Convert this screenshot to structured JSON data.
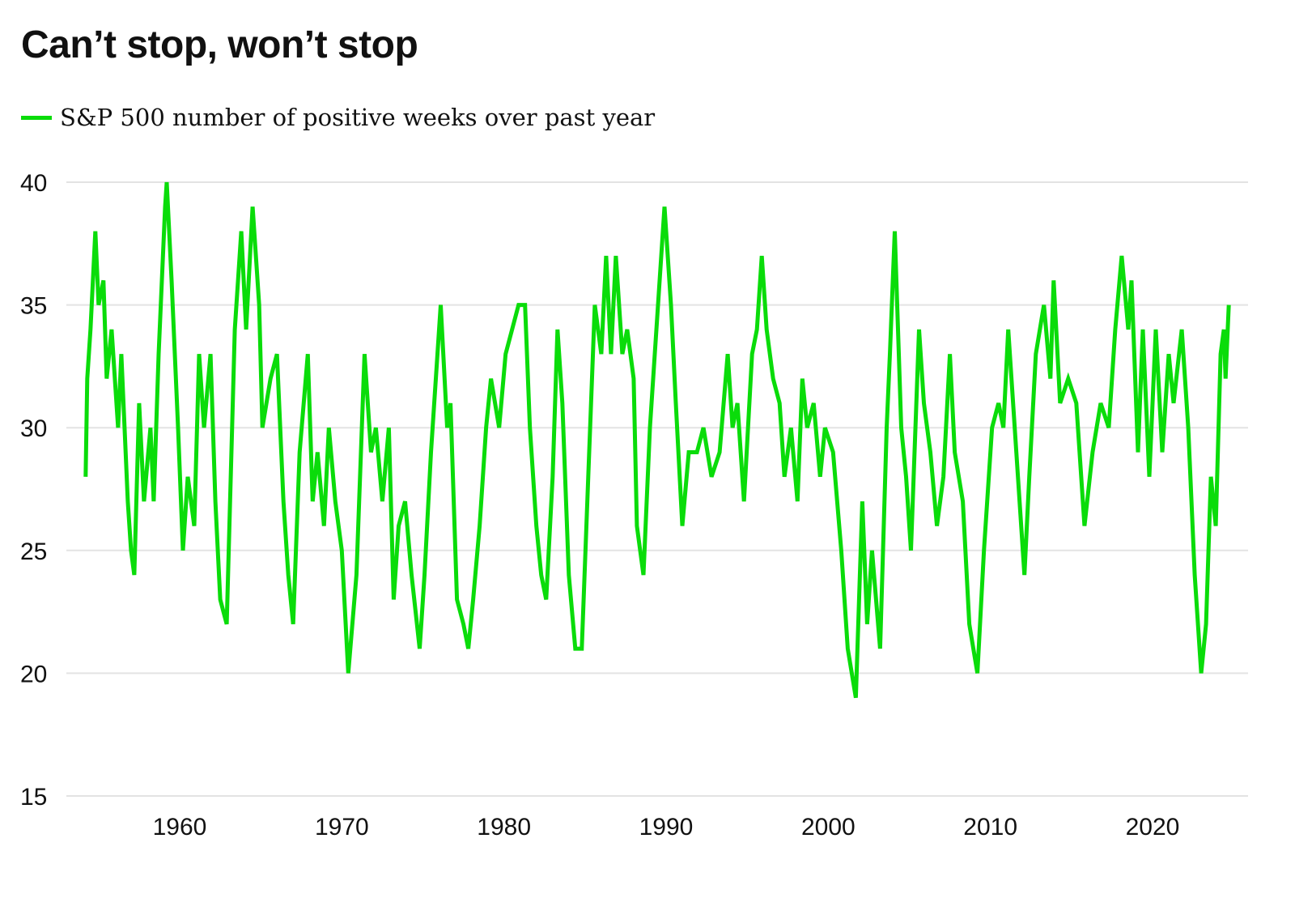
{
  "chart_data": {
    "type": "line",
    "title": "Can’t stop, won’t stop",
    "xlabel": "",
    "ylabel": "",
    "ylim": [
      15,
      40
    ],
    "xlim": [
      1953,
      2026
    ],
    "yticks": [
      15,
      20,
      25,
      30,
      35,
      40
    ],
    "xticks": [
      1960,
      1970,
      1980,
      1990,
      2000,
      2010,
      2020
    ],
    "grid": "horizontal",
    "legend_position": "top-left",
    "series": [
      {
        "name": "S&P 500 number of positive weeks over past year",
        "color": "#0adc0a",
        "points": [
          [
            1954.2,
            28
          ],
          [
            1954.3,
            32
          ],
          [
            1954.5,
            34
          ],
          [
            1954.8,
            38
          ],
          [
            1955.0,
            35
          ],
          [
            1955.3,
            36
          ],
          [
            1955.5,
            32
          ],
          [
            1955.8,
            34
          ],
          [
            1956.2,
            30
          ],
          [
            1956.4,
            33
          ],
          [
            1956.8,
            27
          ],
          [
            1957.0,
            25
          ],
          [
            1957.2,
            24
          ],
          [
            1957.5,
            31
          ],
          [
            1957.8,
            27
          ],
          [
            1958.2,
            30
          ],
          [
            1958.4,
            27
          ],
          [
            1958.7,
            33
          ],
          [
            1959.1,
            39
          ],
          [
            1959.2,
            40
          ],
          [
            1959.5,
            36
          ],
          [
            1959.9,
            30
          ],
          [
            1960.2,
            25
          ],
          [
            1960.5,
            28
          ],
          [
            1960.9,
            26
          ],
          [
            1961.2,
            33
          ],
          [
            1961.5,
            30
          ],
          [
            1961.9,
            33
          ],
          [
            1962.2,
            27
          ],
          [
            1962.5,
            23
          ],
          [
            1962.9,
            22
          ],
          [
            1963.4,
            34
          ],
          [
            1963.8,
            38
          ],
          [
            1964.1,
            34
          ],
          [
            1964.5,
            39
          ],
          [
            1964.9,
            35
          ],
          [
            1965.1,
            30
          ],
          [
            1965.6,
            32
          ],
          [
            1966.0,
            33
          ],
          [
            1966.4,
            27
          ],
          [
            1966.7,
            24
          ],
          [
            1967.0,
            22
          ],
          [
            1967.4,
            29
          ],
          [
            1967.9,
            33
          ],
          [
            1968.2,
            27
          ],
          [
            1968.5,
            29
          ],
          [
            1968.9,
            26
          ],
          [
            1969.2,
            30
          ],
          [
            1969.6,
            27
          ],
          [
            1970.0,
            25
          ],
          [
            1970.4,
            20
          ],
          [
            1970.9,
            24
          ],
          [
            1971.4,
            33
          ],
          [
            1971.8,
            29
          ],
          [
            1972.1,
            30
          ],
          [
            1972.5,
            27
          ],
          [
            1972.9,
            30
          ],
          [
            1973.2,
            23
          ],
          [
            1973.5,
            26
          ],
          [
            1973.9,
            27
          ],
          [
            1974.3,
            24
          ],
          [
            1974.8,
            21
          ],
          [
            1975.1,
            24
          ],
          [
            1975.5,
            29
          ],
          [
            1975.9,
            33
          ],
          [
            1976.1,
            35
          ],
          [
            1976.5,
            30
          ],
          [
            1976.7,
            31
          ],
          [
            1977.1,
            23
          ],
          [
            1977.5,
            22
          ],
          [
            1977.8,
            21
          ],
          [
            1978.1,
            23
          ],
          [
            1978.5,
            26
          ],
          [
            1978.9,
            30
          ],
          [
            1979.2,
            32
          ],
          [
            1979.7,
            30
          ],
          [
            1980.1,
            33
          ],
          [
            1980.5,
            34
          ],
          [
            1980.9,
            35
          ],
          [
            1981.3,
            35
          ],
          [
            1981.6,
            30
          ],
          [
            1982.0,
            26
          ],
          [
            1982.3,
            24
          ],
          [
            1982.6,
            23
          ],
          [
            1983.0,
            28
          ],
          [
            1983.3,
            34
          ],
          [
            1983.6,
            31
          ],
          [
            1984.0,
            24
          ],
          [
            1984.4,
            21
          ],
          [
            1984.8,
            21
          ],
          [
            1985.2,
            28
          ],
          [
            1985.6,
            35
          ],
          [
            1986.0,
            33
          ],
          [
            1986.3,
            37
          ],
          [
            1986.6,
            33
          ],
          [
            1986.9,
            37
          ],
          [
            1987.3,
            33
          ],
          [
            1987.6,
            34
          ],
          [
            1988.0,
            32
          ],
          [
            1988.2,
            26
          ],
          [
            1988.6,
            24
          ],
          [
            1989.0,
            30
          ],
          [
            1989.5,
            35
          ],
          [
            1989.9,
            39
          ],
          [
            1990.3,
            35
          ],
          [
            1990.6,
            31
          ],
          [
            1991.0,
            26
          ],
          [
            1991.4,
            29
          ],
          [
            1991.9,
            29
          ],
          [
            1992.3,
            30
          ],
          [
            1992.8,
            28
          ],
          [
            1993.3,
            29
          ],
          [
            1993.8,
            33
          ],
          [
            1994.1,
            30
          ],
          [
            1994.4,
            31
          ],
          [
            1994.8,
            27
          ],
          [
            1995.3,
            33
          ],
          [
            1995.6,
            34
          ],
          [
            1995.9,
            37
          ],
          [
            1996.2,
            34
          ],
          [
            1996.6,
            32
          ],
          [
            1997.0,
            31
          ],
          [
            1997.3,
            28
          ],
          [
            1997.7,
            30
          ],
          [
            1998.1,
            27
          ],
          [
            1998.4,
            32
          ],
          [
            1998.7,
            30
          ],
          [
            1999.1,
            31
          ],
          [
            1999.5,
            28
          ],
          [
            1999.8,
            30
          ],
          [
            2000.3,
            29
          ],
          [
            2000.8,
            25
          ],
          [
            2001.2,
            21
          ],
          [
            2001.7,
            19
          ],
          [
            2002.1,
            27
          ],
          [
            2002.4,
            22
          ],
          [
            2002.7,
            25
          ],
          [
            2003.2,
            21
          ],
          [
            2003.6,
            30
          ],
          [
            2003.8,
            33
          ],
          [
            2004.1,
            38
          ],
          [
            2004.5,
            30
          ],
          [
            2004.8,
            28
          ],
          [
            2005.1,
            25
          ],
          [
            2005.6,
            34
          ],
          [
            2005.9,
            31
          ],
          [
            2006.3,
            29
          ],
          [
            2006.7,
            26
          ],
          [
            2007.1,
            28
          ],
          [
            2007.5,
            33
          ],
          [
            2007.8,
            29
          ],
          [
            2008.3,
            27
          ],
          [
            2008.7,
            22
          ],
          [
            2009.2,
            20
          ],
          [
            2009.6,
            25
          ],
          [
            2010.1,
            30
          ],
          [
            2010.5,
            31
          ],
          [
            2010.8,
            30
          ],
          [
            2011.1,
            34
          ],
          [
            2011.6,
            29
          ],
          [
            2012.1,
            24
          ],
          [
            2012.4,
            28
          ],
          [
            2012.8,
            33
          ],
          [
            2013.3,
            35
          ],
          [
            2013.7,
            32
          ],
          [
            2013.9,
            36
          ],
          [
            2014.3,
            31
          ],
          [
            2014.8,
            32
          ],
          [
            2015.3,
            31
          ],
          [
            2015.8,
            26
          ],
          [
            2016.3,
            29
          ],
          [
            2016.8,
            31
          ],
          [
            2017.3,
            30
          ],
          [
            2017.7,
            34
          ],
          [
            2018.1,
            37
          ],
          [
            2018.5,
            34
          ],
          [
            2018.7,
            36
          ],
          [
            2019.1,
            29
          ],
          [
            2019.4,
            34
          ],
          [
            2019.8,
            28
          ],
          [
            2020.2,
            34
          ],
          [
            2020.6,
            29
          ],
          [
            2021.0,
            33
          ],
          [
            2021.3,
            31
          ],
          [
            2021.8,
            34
          ],
          [
            2022.2,
            30
          ],
          [
            2022.6,
            24
          ],
          [
            2023.0,
            20
          ],
          [
            2023.3,
            22
          ],
          [
            2023.6,
            28
          ],
          [
            2023.9,
            26
          ],
          [
            2024.2,
            33
          ],
          [
            2024.4,
            34
          ],
          [
            2024.5,
            32
          ],
          [
            2024.7,
            35
          ]
        ]
      }
    ]
  }
}
